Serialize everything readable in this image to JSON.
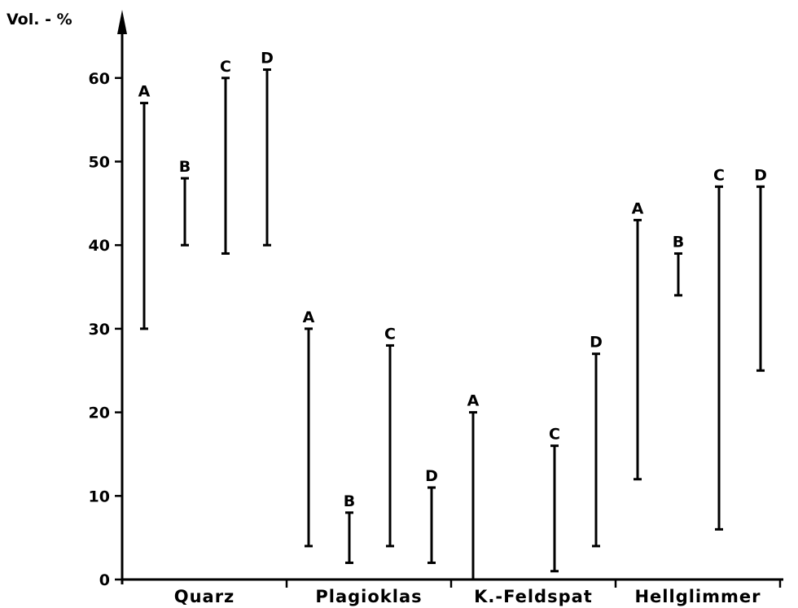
{
  "chart_data": {
    "type": "range-bar",
    "ylabel": "Vol. - %",
    "ylim": [
      0,
      67
    ],
    "yticks": [
      0,
      10,
      20,
      30,
      40,
      50,
      60
    ],
    "categories": [
      "Quarz",
      "Plagioklas",
      "K.-Feldspat",
      "Hellglimmer"
    ],
    "series": [
      {
        "name": "A",
        "ranges": [
          [
            30,
            57
          ],
          [
            4,
            30
          ],
          [
            0,
            20
          ],
          [
            12,
            43
          ]
        ]
      },
      {
        "name": "B",
        "ranges": [
          [
            40,
            48
          ],
          [
            2,
            8
          ],
          null,
          [
            34,
            39
          ]
        ]
      },
      {
        "name": "C",
        "ranges": [
          [
            39,
            60
          ],
          [
            4,
            28
          ],
          [
            1,
            16
          ],
          [
            6,
            47
          ]
        ]
      },
      {
        "name": "D",
        "ranges": [
          [
            40,
            61
          ],
          [
            2,
            11
          ],
          [
            4,
            27
          ],
          [
            25,
            47
          ]
        ]
      }
    ],
    "grid": false,
    "legend": "none"
  }
}
